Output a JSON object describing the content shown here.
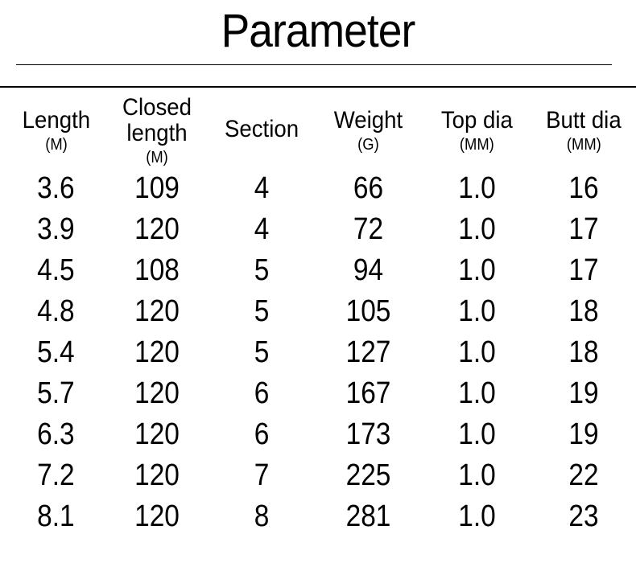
{
  "title": "Parameter",
  "table": {
    "columns": [
      {
        "label": "Length",
        "unit": "(M)"
      },
      {
        "label": "Closed length",
        "unit": "(M)"
      },
      {
        "label": "Section",
        "unit": ""
      },
      {
        "label": "Weight",
        "unit": "(G)"
      },
      {
        "label": "Top dia",
        "unit": "(MM)"
      },
      {
        "label": "Butt dia",
        "unit": "(MM)"
      }
    ],
    "rows": [
      [
        "3.6",
        "109",
        "4",
        "66",
        "1.0",
        "16"
      ],
      [
        "3.9",
        "120",
        "4",
        "72",
        "1.0",
        "17"
      ],
      [
        "4.5",
        "108",
        "5",
        "94",
        "1.0",
        "17"
      ],
      [
        "4.8",
        "120",
        "5",
        "105",
        "1.0",
        "18"
      ],
      [
        "5.4",
        "120",
        "5",
        "127",
        "1.0",
        "18"
      ],
      [
        "5.7",
        "120",
        "6",
        "167",
        "1.0",
        "19"
      ],
      [
        "6.3",
        "120",
        "6",
        "173",
        "1.0",
        "19"
      ],
      [
        "7.2",
        "120",
        "7",
        "225",
        "1.0",
        "22"
      ],
      [
        "8.1",
        "120",
        "8",
        "281",
        "1.0",
        "23"
      ]
    ]
  },
  "styles": {
    "background_color": "#ffffff",
    "text_color": "#000000",
    "title_fontsize": 58,
    "header_label_fontsize": 30,
    "header_unit_fontsize": 20,
    "data_fontsize": 38,
    "border_color": "#000000"
  }
}
